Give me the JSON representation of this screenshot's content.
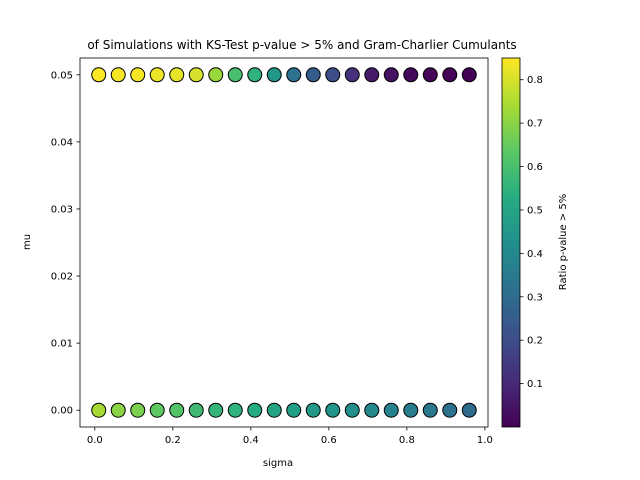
{
  "chart_data": {
    "type": "scatter",
    "title": "of Simulations with KS-Test p-value > 5% and Gram-Charlier Cumulants",
    "xlabel": "sigma",
    "ylabel": "mu",
    "xlim": [
      -0.038,
      1.008
    ],
    "ylim": [
      -0.0025,
      0.0525
    ],
    "xticks": [
      0.0,
      0.2,
      0.4,
      0.6,
      0.8,
      1.0
    ],
    "xtick_labels": [
      "0.0",
      "0.2",
      "0.4",
      "0.6",
      "0.8",
      "1.0"
    ],
    "yticks": [
      0.0,
      0.01,
      0.02,
      0.03,
      0.04,
      0.05
    ],
    "ytick_labels": [
      "0.00",
      "0.01",
      "0.02",
      "0.03",
      "0.04",
      "0.05"
    ],
    "grid": false,
    "colormap": "viridis",
    "colorbar": {
      "label": "Ratio p-value > 5%",
      "range": [
        0.0,
        0.85
      ],
      "ticks": [
        0.1,
        0.2,
        0.3,
        0.4,
        0.5,
        0.6,
        0.7,
        0.8
      ],
      "tick_labels": [
        "0.1",
        "0.2",
        "0.3",
        "0.4",
        "0.5",
        "0.6",
        "0.7",
        "0.8"
      ]
    },
    "x": [
      0.01,
      0.06,
      0.11,
      0.16,
      0.21,
      0.26,
      0.31,
      0.36,
      0.41,
      0.46,
      0.51,
      0.56,
      0.61,
      0.66,
      0.71,
      0.76,
      0.81,
      0.86,
      0.91,
      0.96
    ],
    "series": [
      {
        "mu": 0.05,
        "ratio": [
          0.85,
          0.84,
          0.84,
          0.83,
          0.82,
          0.8,
          0.72,
          0.6,
          0.55,
          0.45,
          0.32,
          0.25,
          0.2,
          0.12,
          0.06,
          0.04,
          0.02,
          0.01,
          0.005,
          0.0
        ]
      },
      {
        "mu": 0.0,
        "ratio": [
          0.74,
          0.7,
          0.68,
          0.64,
          0.62,
          0.58,
          0.56,
          0.55,
          0.52,
          0.5,
          0.48,
          0.46,
          0.44,
          0.42,
          0.4,
          0.38,
          0.36,
          0.34,
          0.32,
          0.3
        ]
      }
    ]
  }
}
